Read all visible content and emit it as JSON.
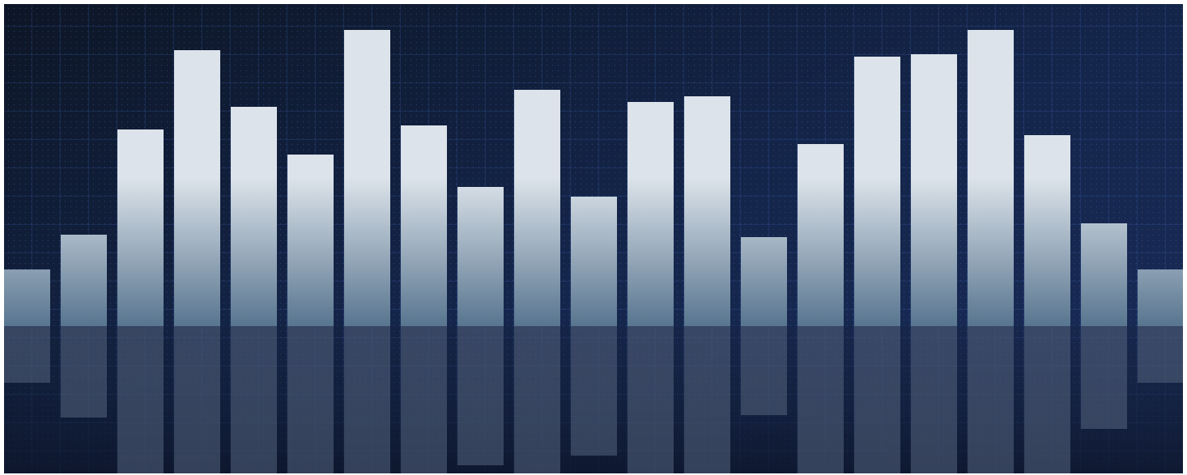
{
  "chart_data": {
    "type": "bar",
    "values": [
      70,
      113,
      243,
      341,
      271,
      212,
      366,
      248,
      172,
      292,
      160,
      277,
      284,
      110,
      225,
      333,
      336,
      366,
      236,
      127,
      70
    ],
    "color": "#dce3ea",
    "ylim": [
      0,
      366
    ]
  }
}
